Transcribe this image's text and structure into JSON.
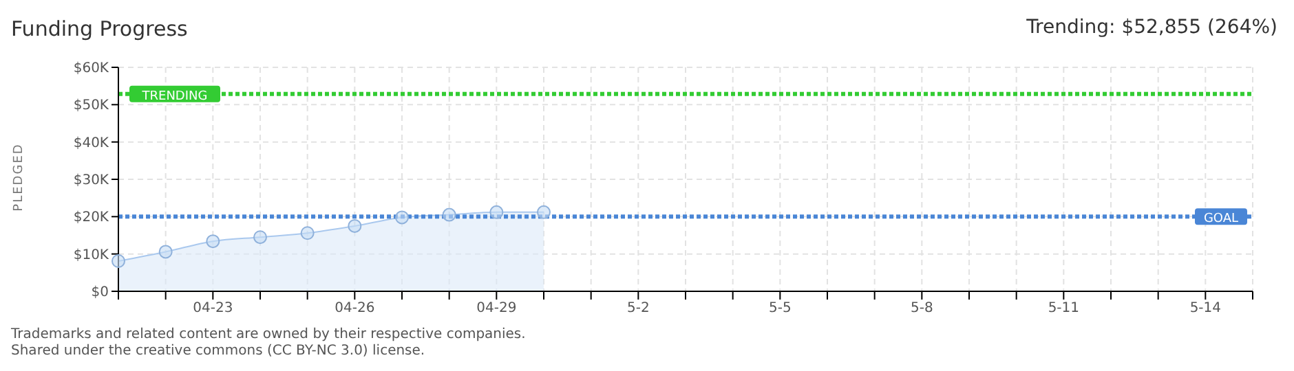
{
  "chart_data": {
    "type": "area",
    "title": "Funding Progress",
    "ylabel": "PLEDGED",
    "annotations": [
      "Trending: $52,855 (264%)",
      "Trademarks and related content are owned by their respective companies.",
      "Shared under the creative commons (CC BY-NC 3.0) license."
    ],
    "categories": [
      null,
      null,
      "04-23",
      null,
      null,
      "04-26",
      null,
      null,
      "04-29",
      null,
      null,
      "5-2",
      null,
      null,
      "5-5",
      null,
      null,
      "5-8",
      null,
      null,
      "5-11",
      null,
      null,
      "5-14",
      null
    ],
    "series": [
      {
        "color": "#a9c8ee",
        "values": [
          8100,
          10600,
          13400,
          14500,
          15600,
          17500,
          19800,
          20500,
          21200,
          21200,
          null,
          null,
          null,
          null,
          null,
          null,
          null,
          null,
          null,
          null,
          null,
          null,
          null,
          null,
          null
        ]
      }
    ],
    "ylim": [
      0,
      60000
    ],
    "yticks": [
      {
        "value": 0,
        "label": "$0"
      },
      {
        "value": 10000,
        "label": "$10K"
      },
      {
        "value": 20000,
        "label": "$20K"
      },
      {
        "value": 30000,
        "label": "$30K"
      },
      {
        "value": 40000,
        "label": "$40K"
      },
      {
        "value": 50000,
        "label": "$50K"
      },
      {
        "value": 60000,
        "label": "$60K"
      }
    ],
    "ref_lines": [
      {
        "axis": "y",
        "value": 52855,
        "label": "TRENDING",
        "color": "#33cc33",
        "line_style": "dotted"
      },
      {
        "axis": "y",
        "value": 20000,
        "label": "GOAL",
        "color": "#4a86d6",
        "line_style": "dotted"
      }
    ],
    "grid": true,
    "marker": "circle"
  }
}
